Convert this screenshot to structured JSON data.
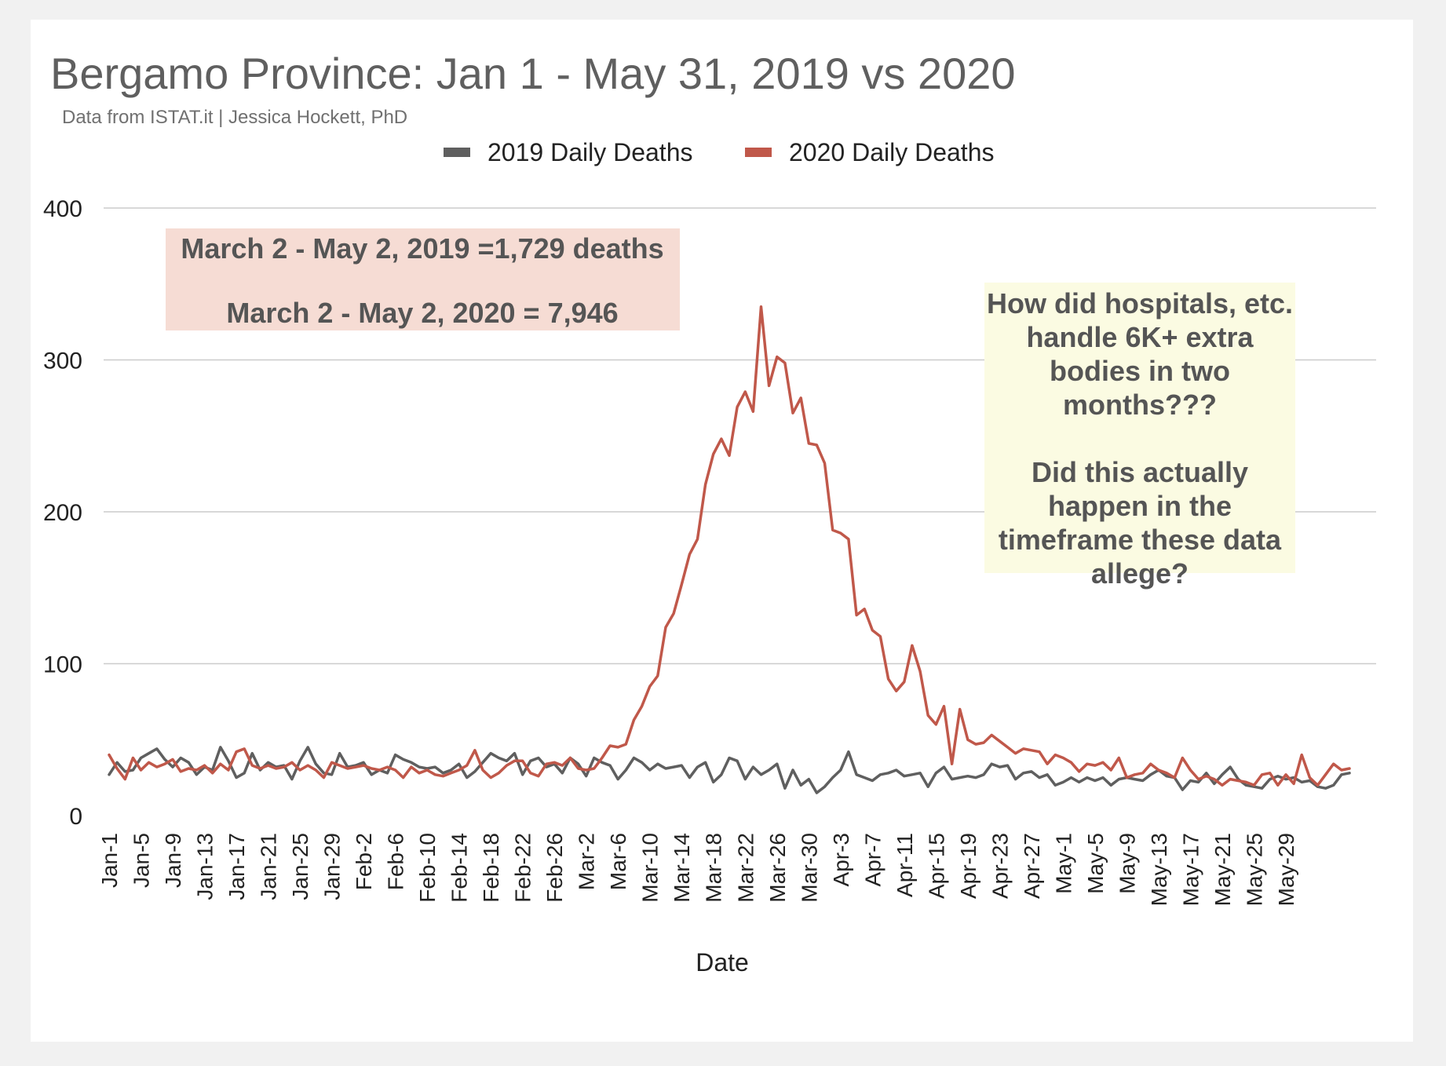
{
  "chart_data": {
    "type": "line",
    "title": "Bergamo Province: Jan 1 - May 31, 2019 vs 2020",
    "subtitle": "Data from ISTAT.it  | Jessica Hockett, PhD",
    "xlabel": "Date",
    "ylabel": "",
    "ylim": [
      0,
      400
    ],
    "yticks": [
      0,
      100,
      200,
      300,
      400
    ],
    "grid": true,
    "legend_position": "top",
    "x_tick_labels": [
      "Jan-1",
      "Jan-5",
      "Jan-9",
      "Jan-13",
      "Jan-17",
      "Jan-21",
      "Jan-25",
      "Jan-29",
      "Feb-2",
      "Feb-6",
      "Feb-10",
      "Feb-14",
      "Feb-18",
      "Feb-22",
      "Feb-26",
      "Mar-2",
      "Mar-6",
      "Mar-10",
      "Mar-14",
      "Mar-18",
      "Mar-22",
      "Mar-26",
      "Mar-30",
      "Apr-3",
      "Apr-7",
      "Apr-11",
      "Apr-15",
      "Apr-19",
      "Apr-23",
      "Apr-27",
      "May-1",
      "May-5",
      "May-9",
      "May-13",
      "May-17",
      "May-21",
      "May-25",
      "May-29"
    ],
    "series": [
      {
        "name": "2019 Daily Deaths",
        "color": "#5f5f5f",
        "values": [
          27,
          35,
          29,
          30,
          38,
          41,
          44,
          37,
          32,
          38,
          35,
          27,
          32,
          30,
          45,
          36,
          25,
          28,
          41,
          30,
          35,
          32,
          33,
          24,
          36,
          45,
          34,
          28,
          27,
          41,
          32,
          33,
          35,
          27,
          30,
          28,
          40,
          37,
          35,
          32,
          31,
          32,
          28,
          30,
          34,
          25,
          29,
          35,
          41,
          38,
          36,
          41,
          27,
          36,
          38,
          32,
          34,
          28,
          38,
          34,
          26,
          38,
          35,
          33,
          24,
          30,
          38,
          35,
          30,
          34,
          31,
          32,
          33,
          25,
          32,
          35,
          22,
          27,
          38,
          36,
          24,
          32,
          27,
          30,
          34,
          18,
          30,
          20,
          24,
          15,
          19,
          25,
          30,
          42,
          27,
          25,
          23,
          27,
          28,
          30,
          26,
          27,
          28,
          19,
          28,
          32,
          24,
          25,
          26,
          25,
          27,
          34,
          32,
          33,
          24,
          28,
          29,
          25,
          27,
          20,
          22,
          25,
          22,
          25,
          23,
          25,
          20,
          24,
          25,
          24,
          23,
          27,
          30,
          26,
          25,
          17,
          23,
          22,
          28,
          21,
          27,
          32,
          24,
          20,
          19,
          18,
          24,
          26,
          24,
          25,
          22,
          23,
          19,
          18,
          20,
          27,
          28
        ]
      },
      {
        "name": "2020 Daily Deaths",
        "color": "#c0584a",
        "values": [
          40,
          31,
          24,
          38,
          30,
          35,
          32,
          34,
          37,
          29,
          31,
          30,
          33,
          28,
          34,
          30,
          42,
          44,
          33,
          31,
          33,
          31,
          32,
          35,
          30,
          33,
          30,
          25,
          35,
          33,
          31,
          32,
          33,
          31,
          30,
          32,
          30,
          25,
          32,
          28,
          30,
          27,
          26,
          28,
          30,
          33,
          43,
          30,
          25,
          28,
          33,
          36,
          36,
          28,
          26,
          34,
          35,
          33,
          38,
          31,
          30,
          31,
          38,
          46,
          45,
          47,
          63,
          72,
          85,
          92,
          124,
          133,
          152,
          172,
          182,
          218,
          238,
          248,
          237,
          269,
          279,
          266,
          335,
          283,
          302,
          298,
          265,
          275,
          245,
          244,
          232,
          188,
          186,
          182,
          132,
          136,
          122,
          118,
          90,
          82,
          88,
          112,
          95,
          66,
          60,
          72,
          34,
          70,
          50,
          47,
          48,
          53,
          49,
          45,
          41,
          44,
          43,
          42,
          34,
          40,
          38,
          35,
          29,
          34,
          33,
          35,
          30,
          38,
          25,
          27,
          28,
          34,
          30,
          28,
          25,
          38,
          30,
          24,
          26,
          24,
          20,
          24,
          23,
          22,
          20,
          27,
          28,
          20,
          27,
          21,
          40,
          25,
          20,
          27,
          34,
          30,
          31
        ]
      }
    ]
  },
  "annotations": {
    "comparison_line1": "March 2 - May 2, 2019 =1,729 deaths",
    "comparison_line2": "March 2 - May 2, 2020 = 7,946",
    "question_lines": [
      "How did hospitals, etc.",
      "handle 6K+ extra",
      "bodies in two",
      "months???",
      "",
      "Did this actually",
      "happen in the",
      "timeframe these data",
      "allege?"
    ]
  },
  "colors": {
    "comparison_box": "#f6dcd4",
    "question_box": "#fbfbe2",
    "grid": "#cccccc"
  }
}
